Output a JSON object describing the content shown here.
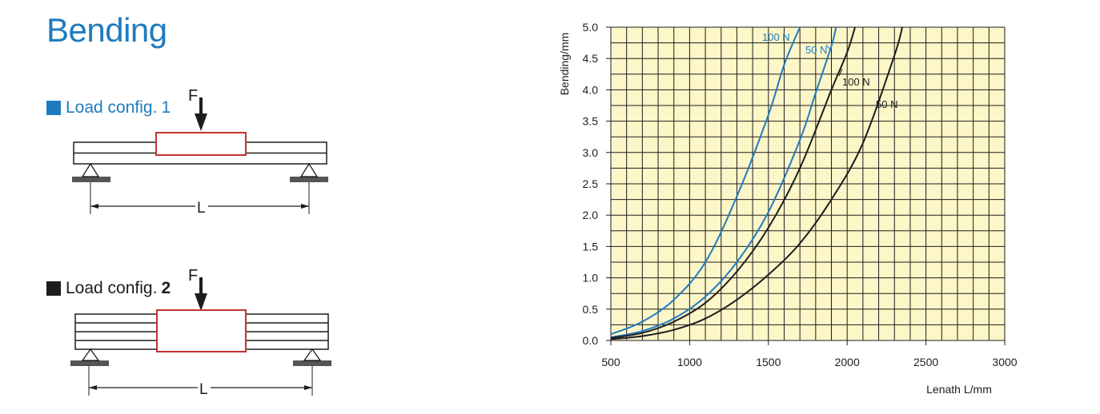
{
  "page": {
    "title": "Bending"
  },
  "colors": {
    "blue": "#1f7bbf",
    "black": "#1d1d1d",
    "red": "#c33333",
    "plot_bg": "#fcf6c8"
  },
  "diagram": {
    "config1": {
      "label": "Load config.",
      "number": "1",
      "force_label": "F",
      "length_label": "L"
    },
    "config2": {
      "label": "Load config.",
      "number": "2",
      "force_label": "F",
      "length_label": "L"
    }
  },
  "chart_data": {
    "type": "line",
    "xlabel": "Lenath L/mm",
    "ylabel": "Bending/mm",
    "xlim": [
      500,
      3000
    ],
    "ylim": [
      0,
      5
    ],
    "xticks": [
      500,
      1000,
      1500,
      2000,
      2500,
      3000
    ],
    "yticks": [
      "0.0",
      "0.5",
      "1.0",
      "1.5",
      "2.0",
      "2.5",
      "3.0",
      "3.5",
      "4.0",
      "4.5",
      "5.0"
    ],
    "grid": true,
    "series": [
      {
        "name": "100 N",
        "config": "1",
        "color": "blue",
        "x": [
          500,
          700,
          900,
          1100,
          1300,
          1500,
          1600,
          1700
        ],
        "y": [
          0.1,
          0.3,
          0.65,
          1.25,
          2.3,
          3.6,
          4.4,
          5.0
        ]
      },
      {
        "name": "50 N",
        "config": "1",
        "color": "blue",
        "x": [
          500,
          700,
          900,
          1100,
          1300,
          1500,
          1700,
          1800,
          1900,
          1930
        ],
        "y": [
          0.05,
          0.15,
          0.35,
          0.7,
          1.25,
          2.05,
          3.2,
          3.95,
          4.7,
          5.0
        ]
      },
      {
        "name": "100 N",
        "config": "2",
        "color": "black",
        "x": [
          500,
          700,
          900,
          1100,
          1300,
          1500,
          1700,
          1900,
          2000,
          2050
        ],
        "y": [
          0.04,
          0.12,
          0.3,
          0.6,
          1.1,
          1.8,
          2.75,
          4.0,
          4.6,
          5.0
        ]
      },
      {
        "name": "50 N",
        "config": "2",
        "color": "black",
        "x": [
          500,
          700,
          900,
          1100,
          1300,
          1500,
          1700,
          1900,
          2100,
          2300,
          2350
        ],
        "y": [
          0.02,
          0.07,
          0.17,
          0.35,
          0.65,
          1.05,
          1.55,
          2.25,
          3.15,
          4.55,
          5.0
        ]
      }
    ],
    "annotations": [
      {
        "text": "100 N",
        "color": "blue"
      },
      {
        "text": "50 N",
        "color": "blue"
      },
      {
        "text": "100 N",
        "color": "black"
      },
      {
        "text": "50 N",
        "color": "black"
      }
    ]
  }
}
